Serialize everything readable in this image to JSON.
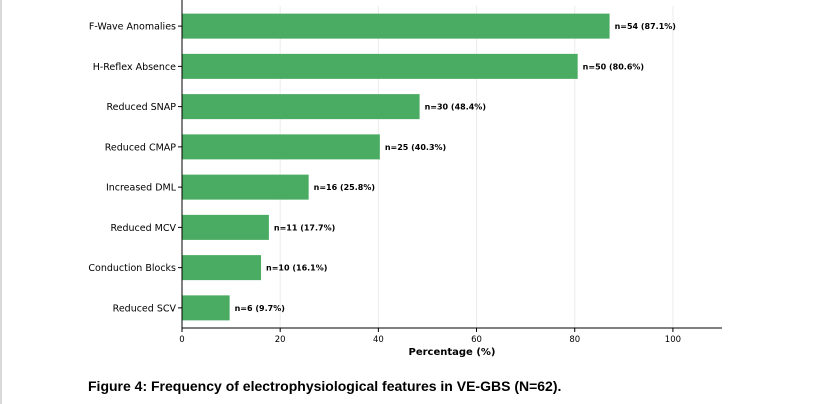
{
  "chart_data": {
    "type": "bar",
    "orientation": "horizontal",
    "title": "",
    "xlabel": "Percentage (%)",
    "ylabel": "",
    "xlim": [
      0,
      110
    ],
    "xticks": [
      "0",
      "20",
      "40",
      "60",
      "80",
      "100"
    ],
    "grid": "vertical",
    "bar_color": "#4aab62",
    "categories": [
      "F-Wave Anomalies",
      "H-Reflex Absence",
      "Reduced SNAP",
      "Reduced CMAP",
      "Increased DML",
      "Reduced MCV",
      "Conduction Blocks",
      "Reduced SCV"
    ],
    "values": [
      87.1,
      80.6,
      48.4,
      40.3,
      25.8,
      17.7,
      16.1,
      9.7
    ],
    "data_labels": [
      "n=54 (87.1%)",
      "n=50 (80.6%)",
      "n=30 (48.4%)",
      "n=25 (40.3%)",
      "n=16 (25.8%)",
      "n=11 (17.7%)",
      "n=10 (16.1%)",
      "n=6 (9.7%)"
    ]
  },
  "caption": "Figure 4: Frequency of electrophysiological features in VE-GBS (N=62)."
}
